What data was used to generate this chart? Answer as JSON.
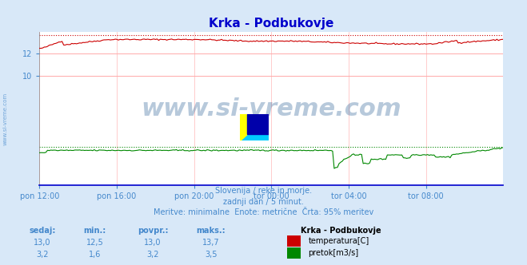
{
  "title": "Krka - Podbukovje",
  "bg_color": "#d8e8f8",
  "plot_bg_color": "#ffffff",
  "grid_color_h": "#ffaaaa",
  "grid_color_v": "#ffcccc",
  "title_color": "#0000cc",
  "title_fontsize": 11,
  "text_color": "#4488cc",
  "watermark": "www.si-vreme.com",
  "watermark_color": "#336699",
  "watermark_alpha": 0.35,
  "subtitle_lines": [
    "Slovenija / reke in morje.",
    "zadnji dan / 5 minut.",
    "Meritve: minimalne  Enote: metrične  Črta: 95% meritev"
  ],
  "xtick_labels": [
    "pon 12:00",
    "pon 16:00",
    "pon 20:00",
    "tor 00:00",
    "tor 04:00",
    "tor 08:00"
  ],
  "xtick_positions": [
    0,
    48,
    96,
    144,
    192,
    240
  ],
  "n_points": 289,
  "temp_color": "#cc0000",
  "flow_color": "#008800",
  "temp_95pct": 13.7,
  "flow_95pct": 3.5,
  "ylim_min": 0,
  "ylim_max": 14,
  "ytick_vals": [
    10,
    12
  ],
  "legend_header": "Krka - Podbukovje",
  "legend_items": [
    {
      "label": "temperatura[C]",
      "color": "#cc0000"
    },
    {
      "label": "pretok[m3/s]",
      "color": "#008800"
    }
  ],
  "table_headers": [
    "sedaj:",
    "min.:",
    "povpr.:",
    "maks.:"
  ],
  "table_rows": [
    [
      "13,0",
      "12,5",
      "13,0",
      "13,7"
    ],
    [
      "3,2",
      "1,6",
      "3,2",
      "3,5"
    ]
  ]
}
